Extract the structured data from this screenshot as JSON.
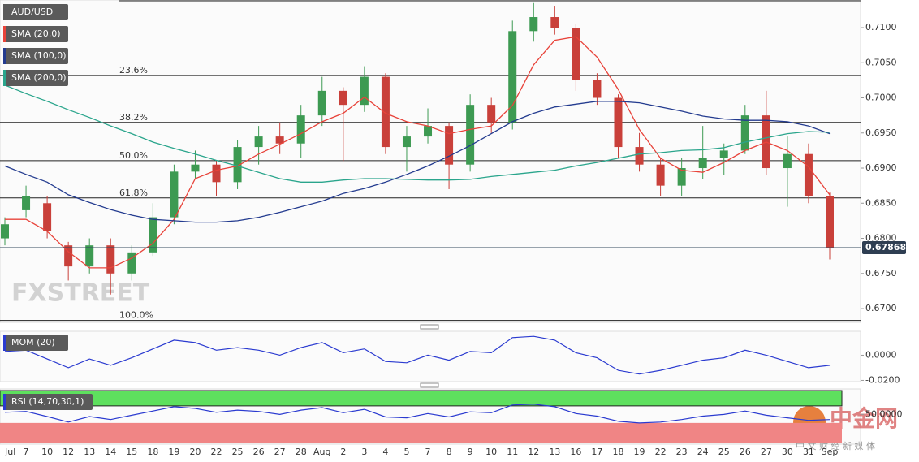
{
  "chart_data": [
    {
      "type": "candlestick",
      "name": "AUD/USD",
      "up_color": "#3d9a52",
      "down_color": "#c9403a",
      "ylim": [
        0.66804,
        0.71393
      ],
      "yticks": [
        {
          "value": 0.67,
          "label": "0.6700"
        },
        {
          "value": 0.675,
          "label": "0.6750"
        },
        {
          "value": 0.68,
          "label": "0.6800"
        },
        {
          "value": 0.685,
          "label": "0.6850"
        },
        {
          "value": 0.69,
          "label": "0.6900"
        },
        {
          "value": 0.695,
          "label": "0.6950"
        },
        {
          "value": 0.7,
          "label": "0.7000"
        },
        {
          "value": 0.705,
          "label": "0.7050"
        },
        {
          "value": 0.71,
          "label": "0.7100"
        }
      ],
      "categories": [
        "Jul",
        "7",
        "10",
        "12",
        "13",
        "14",
        "15",
        "18",
        "19",
        "20",
        "22",
        "25",
        "26",
        "27",
        "28",
        "Aug",
        "2",
        "3",
        "4",
        "5",
        "7",
        "8",
        "9",
        "10",
        "11",
        "12",
        "13",
        "16",
        "17",
        "18",
        "19",
        "22",
        "23",
        "24",
        "25",
        "26",
        "27",
        "30",
        "31",
        "Sep"
      ],
      "ohlc": [
        [
          0.68,
          0.683,
          0.679,
          0.682
        ],
        [
          0.684,
          0.6875,
          0.683,
          0.686
        ],
        [
          0.685,
          0.686,
          0.68,
          0.681
        ],
        [
          0.679,
          0.6795,
          0.674,
          0.676
        ],
        [
          0.676,
          0.68,
          0.675,
          0.679
        ],
        [
          0.679,
          0.68,
          0.672,
          0.675
        ],
        [
          0.675,
          0.679,
          0.674,
          0.678
        ],
        [
          0.678,
          0.685,
          0.6775,
          0.683
        ],
        [
          0.683,
          0.6905,
          0.682,
          0.6895
        ],
        [
          0.6895,
          0.6925,
          0.6885,
          0.6905
        ],
        [
          0.6905,
          0.691,
          0.686,
          0.688
        ],
        [
          0.688,
          0.694,
          0.687,
          0.693
        ],
        [
          0.693,
          0.696,
          0.6905,
          0.6945
        ],
        [
          0.6945,
          0.6965,
          0.692,
          0.6935
        ],
        [
          0.6935,
          0.699,
          0.6915,
          0.6975
        ],
        [
          0.6975,
          0.703,
          0.696,
          0.701
        ],
        [
          0.701,
          0.7015,
          0.691,
          0.699
        ],
        [
          0.699,
          0.7045,
          0.698,
          0.703
        ],
        [
          0.703,
          0.7035,
          0.692,
          0.693
        ],
        [
          0.693,
          0.696,
          0.6895,
          0.6945
        ],
        [
          0.6945,
          0.6985,
          0.6935,
          0.696
        ],
        [
          0.696,
          0.6965,
          0.687,
          0.6905
        ],
        [
          0.6905,
          0.7005,
          0.6895,
          0.699
        ],
        [
          0.699,
          0.7,
          0.695,
          0.6965
        ],
        [
          0.6965,
          0.711,
          0.6955,
          0.7095
        ],
        [
          0.7095,
          0.7135,
          0.708,
          0.7115
        ],
        [
          0.7115,
          0.713,
          0.709,
          0.71
        ],
        [
          0.71,
          0.7105,
          0.701,
          0.7025
        ],
        [
          0.7025,
          0.7035,
          0.699,
          0.7
        ],
        [
          0.7,
          0.7005,
          0.6915,
          0.693
        ],
        [
          0.693,
          0.695,
          0.6895,
          0.6905
        ],
        [
          0.6905,
          0.6915,
          0.686,
          0.6875
        ],
        [
          0.6875,
          0.6915,
          0.686,
          0.69
        ],
        [
          0.69,
          0.696,
          0.6885,
          0.6915
        ],
        [
          0.6915,
          0.6935,
          0.689,
          0.6925
        ],
        [
          0.6925,
          0.699,
          0.692,
          0.6975
        ],
        [
          0.6975,
          0.701,
          0.689,
          0.69
        ],
        [
          0.69,
          0.6945,
          0.6845,
          0.692
        ],
        [
          0.692,
          0.6935,
          0.685,
          0.686
        ],
        [
          0.686,
          0.6865,
          0.677,
          0.67868
        ]
      ],
      "series": [
        {
          "name": "SMA (20,0)",
          "color": "#e8433a",
          "values": [
            0.6827,
            0.6827,
            0.681,
            0.6781,
            0.6758,
            0.6758,
            0.6772,
            0.6793,
            0.6827,
            0.6885,
            0.6897,
            0.6903,
            0.692,
            0.6934,
            0.6949,
            0.6966,
            0.6978,
            0.7001,
            0.6978,
            0.6966,
            0.696,
            0.6949,
            0.6955,
            0.696,
            0.6989,
            0.7047,
            0.7082,
            0.7087,
            0.7058,
            0.7012,
            0.6955,
            0.6914,
            0.6897,
            0.6894,
            0.6908,
            0.6925,
            0.6937,
            0.6925,
            0.6902,
            0.6862
          ]
        },
        {
          "name": "SMA (100,0)",
          "color": "#233b8f",
          "values": [
            0.6903,
            0.6891,
            0.688,
            0.6862,
            0.6851,
            0.6841,
            0.6833,
            0.6827,
            0.6825,
            0.6823,
            0.6823,
            0.6825,
            0.683,
            0.6837,
            0.6845,
            0.6853,
            0.6864,
            0.6871,
            0.688,
            0.6891,
            0.6903,
            0.6917,
            0.6932,
            0.6949,
            0.6966,
            0.6978,
            0.6987,
            0.6991,
            0.6995,
            0.6995,
            0.6993,
            0.6987,
            0.6981,
            0.6974,
            0.697,
            0.6968,
            0.6968,
            0.6966,
            0.696,
            0.6949
          ]
        },
        {
          "name": "SMA (200,0)",
          "color": "#2aa58c",
          "values": [
            0.7018,
            0.7006,
            0.6995,
            0.6983,
            0.6972,
            0.696,
            0.6949,
            0.6937,
            0.6928,
            0.692,
            0.6911,
            0.6903,
            0.6894,
            0.6885,
            0.688,
            0.688,
            0.6883,
            0.6885,
            0.6885,
            0.6884,
            0.6883,
            0.6883,
            0.6884,
            0.6888,
            0.6891,
            0.6894,
            0.6897,
            0.6903,
            0.6908,
            0.6914,
            0.692,
            0.6922,
            0.6925,
            0.6926,
            0.6929,
            0.6937,
            0.6943,
            0.6949,
            0.6952,
            0.6951
          ]
        }
      ],
      "fibonacci": {
        "levels": [
          0.71381,
          0.70319,
          0.6965,
          0.69106,
          0.68575,
          0.66831
        ],
        "labels": [
          null,
          "23.6%",
          "38.2%",
          "50.0%",
          "61.8%",
          "100.0%"
        ]
      },
      "last_price": 0.67868
    },
    {
      "type": "line",
      "ylim": [
        -0.021,
        0.019
      ],
      "yticks": [
        {
          "value": 0,
          "label": "0.0000"
        },
        {
          "value": -0.02,
          "label": "-0.0200"
        }
      ],
      "series": [
        {
          "name": "MOM (20)",
          "color": "#2a3ad0",
          "values": [
            0.003,
            0.004,
            -0.003,
            -0.01,
            -0.003,
            -0.008,
            -0.002,
            0.005,
            0.012,
            0.01,
            0.004,
            0.006,
            0.004,
            0,
            0.006,
            0.01,
            0.002,
            0.005,
            -0.005,
            -0.006,
            0,
            -0.004,
            0.003,
            0.002,
            0.014,
            0.015,
            0.012,
            0.002,
            -0.002,
            -0.012,
            -0.015,
            -0.012,
            -0.008,
            -0.004,
            -0.002,
            0.004,
            0,
            -0.005,
            -0.01,
            -0.008
          ]
        }
      ]
    },
    {
      "type": "line",
      "ylim": [
        -16,
        106
      ],
      "overbought": 70,
      "oversold": 30,
      "overbought_color": "#5ee05e",
      "oversold_color": "#f08585",
      "yticks": [
        {
          "value": 50,
          "label": "50.0000"
        }
      ],
      "series": [
        {
          "name": "RSI (14,70,30,1)",
          "color": "#2a3ad0",
          "values": [
            55,
            57,
            45,
            32,
            45,
            38,
            48,
            58,
            68,
            64,
            55,
            60,
            57,
            50,
            60,
            66,
            54,
            62,
            44,
            42,
            52,
            44,
            56,
            54,
            72,
            74,
            68,
            52,
            46,
            34,
            30,
            32,
            38,
            46,
            50,
            58,
            48,
            42,
            36,
            38
          ]
        }
      ]
    }
  ],
  "watermarks": {
    "fxstreet": "FXSTREET",
    "cngold": "中金网",
    "cngold_sub": "中 文 财 经 新 媒 体"
  }
}
